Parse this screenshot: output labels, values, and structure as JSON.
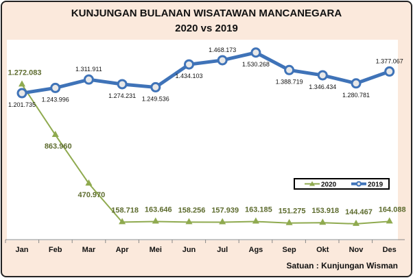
{
  "chart_data": {
    "type": "line",
    "title": "KUNJUNGAN BULANAN WISATAWAN MANCANEGARA",
    "subtitle": "2020  vs  2019",
    "categories": [
      "Jan",
      "Feb",
      "Mar",
      "Apr",
      "Mei",
      "Jun",
      "Jul",
      "Ags",
      "Sep",
      "Okt",
      "Nov",
      "Des"
    ],
    "ylim": [
      0,
      1612000
    ],
    "grid": false,
    "legend_position": "right",
    "series": [
      {
        "name": "2020",
        "color": "#8faa4f",
        "marker": "triangle",
        "values": [
          1272083,
          863960,
          470970,
          158718,
          163646,
          158256,
          157939,
          163185,
          151275,
          153918,
          144467,
          164088
        ],
        "labels": [
          "1.272.083",
          "863.960",
          "470.970",
          "158.718",
          "163.646",
          "158.256",
          "157.939",
          "163.185",
          "151.275",
          "153.918",
          "144.467",
          "164.088"
        ],
        "label_side": [
          "above",
          "below",
          "below",
          "above",
          "above",
          "above",
          "above",
          "above",
          "above",
          "above",
          "above",
          "above"
        ]
      },
      {
        "name": "2019",
        "color": "#3f73b8",
        "marker": "circle",
        "values": [
          1201735,
          1243996,
          1311911,
          1274231,
          1249536,
          1434103,
          1468173,
          1530268,
          1388719,
          1346434,
          1280781,
          1377067
        ],
        "labels": [
          "1.201.735",
          "1.243.996",
          "1.311.911",
          "1.274.231",
          "1.249.536",
          "1.434.103",
          "1.468.173",
          "1.530.268",
          "1.388.719",
          "1.346.434",
          "1.280.781",
          "1.377.067"
        ],
        "label_side": [
          "below",
          "below",
          "above",
          "below",
          "below",
          "below",
          "above",
          "below",
          "below",
          "below",
          "below",
          "above"
        ]
      }
    ],
    "unit_note": "Satuan : Kunjungan Wisman"
  }
}
